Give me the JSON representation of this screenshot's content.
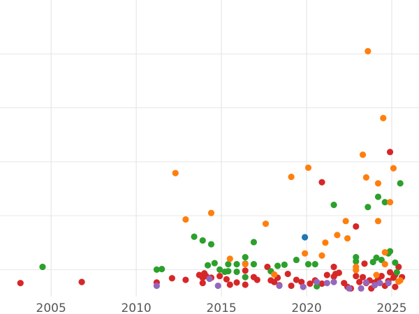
{
  "colors": {
    "red": "#d62728",
    "green": "#2ca02c",
    "orange": "#ff7f0e",
    "purple": "#9467bd",
    "blue": "#1f77b4"
  },
  "chart_data": {
    "type": "scatter",
    "title": "",
    "xlabel": "",
    "ylabel": "",
    "xlim": [
      2002.0,
      2026.6
    ],
    "ylim": [
      0,
      550
    ],
    "grid": true,
    "legend": "none",
    "x_ticks": [
      {
        "value": 2005,
        "label": "2005"
      },
      {
        "value": 2010,
        "label": "2010"
      },
      {
        "value": 2015,
        "label": "2015"
      },
      {
        "value": 2020,
        "label": "2020"
      },
      {
        "value": 2025,
        "label": "2025"
      }
    ],
    "y_gridlines": [
      50,
      150,
      250,
      350,
      450
    ],
    "series": [
      {
        "color_key": "red",
        "points": [
          [
            2003.2,
            25
          ],
          [
            2006.8,
            27
          ],
          [
            2011.2,
            26
          ],
          [
            2012.1,
            34
          ],
          [
            2012.9,
            31
          ],
          [
            2013.7,
            40
          ],
          [
            2014.0,
            43
          ],
          [
            2013.9,
            35
          ],
          [
            2014.1,
            38
          ],
          [
            2013.9,
            25
          ],
          [
            2014.4,
            35
          ],
          [
            2014.9,
            38
          ],
          [
            2015.3,
            32
          ],
          [
            2015.5,
            22
          ],
          [
            2015.9,
            26
          ],
          [
            2016.4,
            22
          ],
          [
            2016.4,
            48
          ],
          [
            2016.9,
            36
          ],
          [
            2017.1,
            31
          ],
          [
            2017.7,
            55
          ],
          [
            2017.9,
            30
          ],
          [
            2018.1,
            27
          ],
          [
            2018.3,
            35
          ],
          [
            2018.4,
            21
          ],
          [
            2018.9,
            42
          ],
          [
            2019.1,
            20
          ],
          [
            2019.4,
            31
          ],
          [
            2019.7,
            27
          ],
          [
            2020.2,
            24
          ],
          [
            2020.5,
            30
          ],
          [
            2020.9,
            24
          ],
          [
            2021.2,
            40
          ],
          [
            2021.6,
            37
          ],
          [
            2021.6,
            55
          ],
          [
            2021.7,
            42
          ],
          [
            2021.9,
            44
          ],
          [
            2022.2,
            25
          ],
          [
            2022.4,
            18
          ],
          [
            2022.6,
            15
          ],
          [
            2022.9,
            38
          ],
          [
            2023.1,
            27
          ],
          [
            2023.3,
            36
          ],
          [
            2023.5,
            25
          ],
          [
            2023.7,
            30
          ],
          [
            2023.8,
            15
          ],
          [
            2024.0,
            26
          ],
          [
            2024.2,
            32
          ],
          [
            2024.4,
            38
          ],
          [
            2024.9,
            45
          ],
          [
            2025.2,
            40
          ],
          [
            2025.4,
            28
          ],
          [
            2025.2,
            18
          ],
          [
            2025.4,
            55
          ],
          [
            2025.1,
            35
          ],
          [
            2024.8,
            29
          ],
          [
            2025.6,
            36
          ],
          [
            2024.6,
            20
          ],
          [
            2023.4,
            61
          ],
          [
            2022.9,
            130
          ],
          [
            2020.9,
            212
          ],
          [
            2024.9,
            268
          ]
        ]
      },
      {
        "color_key": "green",
        "points": [
          [
            2004.5,
            55
          ],
          [
            2011.2,
            50
          ],
          [
            2011.5,
            51
          ],
          [
            2013.4,
            111
          ],
          [
            2013.9,
            104
          ],
          [
            2014.4,
            97
          ],
          [
            2014.2,
            58
          ],
          [
            2014.6,
            62
          ],
          [
            2014.9,
            50
          ],
          [
            2015.2,
            46
          ],
          [
            2015.4,
            60
          ],
          [
            2015.4,
            47
          ],
          [
            2015.9,
            46
          ],
          [
            2015.9,
            60
          ],
          [
            2016.4,
            73
          ],
          [
            2016.4,
            61
          ],
          [
            2016.4,
            36
          ],
          [
            2016.9,
            60
          ],
          [
            2016.9,
            101
          ],
          [
            2017.9,
            47
          ],
          [
            2018.3,
            57
          ],
          [
            2018.7,
            59
          ],
          [
            2019.4,
            68
          ],
          [
            2020.1,
            60
          ],
          [
            2020.5,
            60
          ],
          [
            2020.6,
            19
          ],
          [
            2021.6,
            170
          ],
          [
            2022.9,
            65
          ],
          [
            2022.9,
            73
          ],
          [
            2023.9,
            64
          ],
          [
            2024.1,
            72
          ],
          [
            2024.2,
            185
          ],
          [
            2024.6,
            175
          ],
          [
            2025.2,
            63
          ],
          [
            2025.3,
            45
          ],
          [
            2025.5,
            210
          ],
          [
            2024.8,
            80
          ],
          [
            2024.9,
            84
          ],
          [
            2023.6,
            166
          ],
          [
            2024.4,
            68
          ]
        ]
      },
      {
        "color_key": "orange",
        "points": [
          [
            2012.3,
            229
          ],
          [
            2012.9,
            143
          ],
          [
            2014.4,
            155
          ],
          [
            2015.5,
            70
          ],
          [
            2016.4,
            60
          ],
          [
            2017.6,
            135
          ],
          [
            2018.1,
            41
          ],
          [
            2019.1,
            222
          ],
          [
            2019.9,
            80
          ],
          [
            2020.1,
            239
          ],
          [
            2020.9,
            76
          ],
          [
            2021.1,
            100
          ],
          [
            2021.8,
            114
          ],
          [
            2022.3,
            140
          ],
          [
            2022.4,
            108
          ],
          [
            2022.9,
            49
          ],
          [
            2022.9,
            55
          ],
          [
            2023.3,
            263
          ],
          [
            2023.5,
            221
          ],
          [
            2023.6,
            455
          ],
          [
            2024.1,
            40
          ],
          [
            2024.2,
            140
          ],
          [
            2024.2,
            210
          ],
          [
            2024.5,
            331
          ],
          [
            2024.6,
            60
          ],
          [
            2024.6,
            82
          ],
          [
            2024.9,
            175
          ],
          [
            2025.1,
            238
          ],
          [
            2025.4,
            28
          ],
          [
            2025.5,
            30
          ]
        ]
      },
      {
        "color_key": "purple",
        "points": [
          [
            2011.2,
            20
          ],
          [
            2014.3,
            33
          ],
          [
            2014.8,
            20
          ],
          [
            2018.4,
            20
          ],
          [
            2019.8,
            18
          ],
          [
            2020.6,
            27
          ],
          [
            2021.2,
            25
          ],
          [
            2021.6,
            27
          ],
          [
            2022.5,
            15
          ],
          [
            2023.2,
            15
          ],
          [
            2023.5,
            26
          ],
          [
            2024.0,
            21
          ],
          [
            2024.3,
            25
          ],
          [
            2024.8,
            25
          ]
        ]
      },
      {
        "color_key": "blue",
        "points": [
          [
            2019.9,
            110
          ]
        ]
      }
    ]
  }
}
